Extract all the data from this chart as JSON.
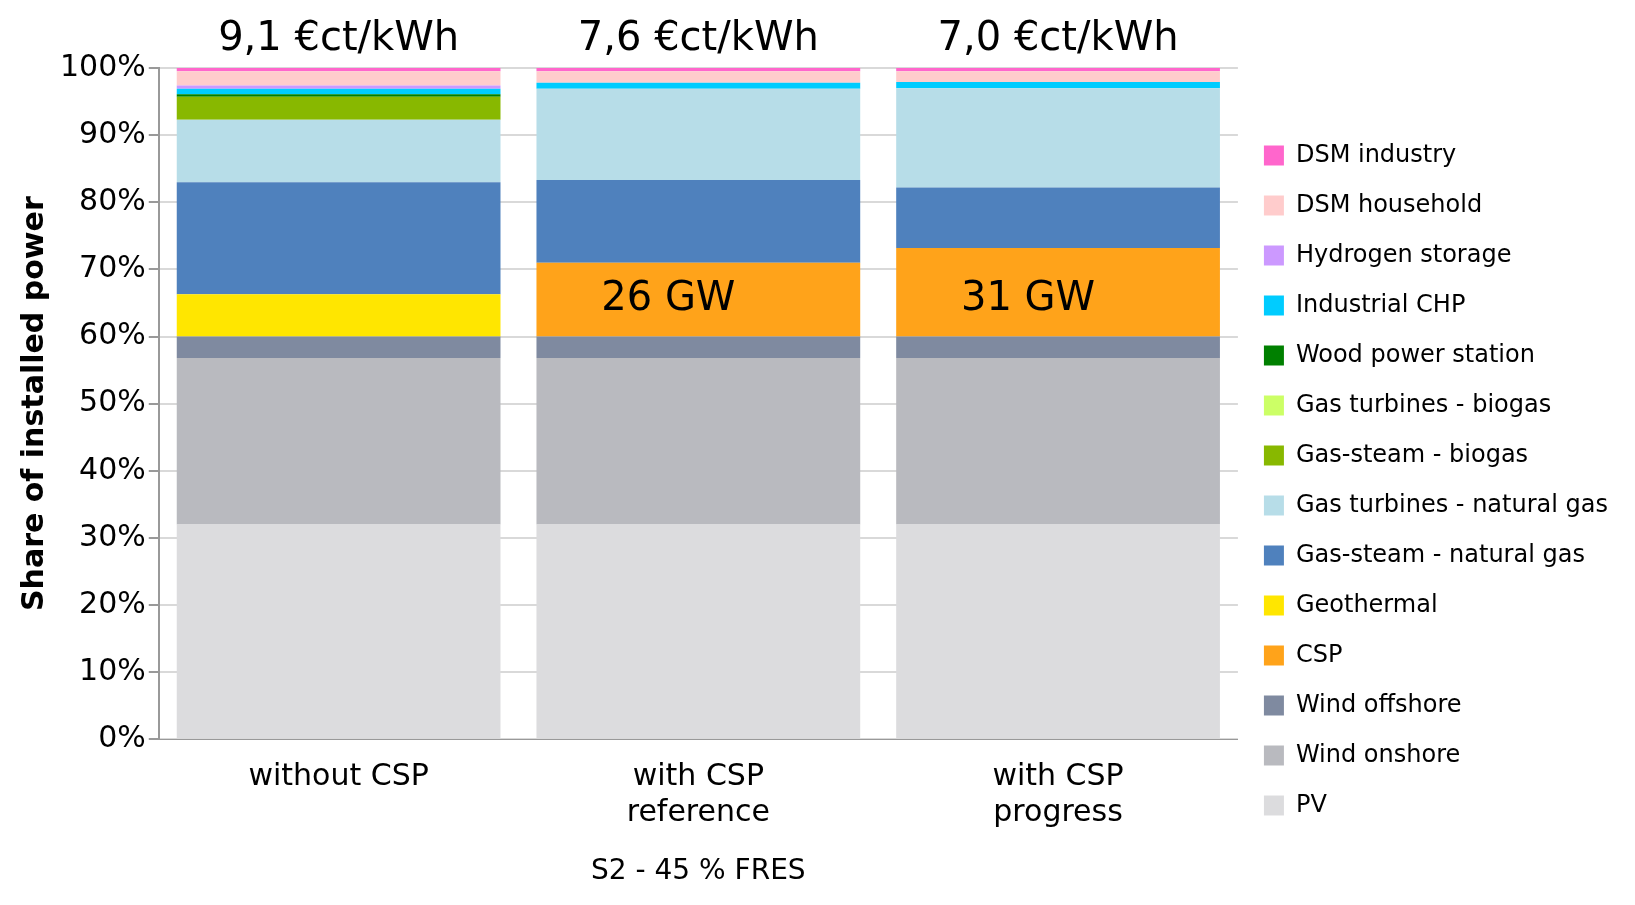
{
  "chart_data": {
    "type": "bar",
    "stacked": true,
    "ylabel": "Share of installed power",
    "xlabel": "S2 - 45 % FRES",
    "categories": [
      "without CSP",
      "with CSP reference",
      "with CSP progress"
    ],
    "series": [
      {
        "name": "PV",
        "color": "#dcdcde",
        "values": [
          32,
          32,
          32
        ]
      },
      {
        "name": "Wind onshore",
        "color": "#b9babf",
        "values": [
          24.8,
          24.8,
          24.8
        ]
      },
      {
        "name": "Wind offshore",
        "color": "#7f8aa0",
        "values": [
          3.2,
          3.2,
          3.2
        ]
      },
      {
        "name": "CSP",
        "color": "#ffa31a",
        "values": [
          0,
          11,
          13.2
        ]
      },
      {
        "name": "Geothermal",
        "color": "#ffe600",
        "values": [
          6.3,
          0,
          0
        ]
      },
      {
        "name": "Gas-steam - natural gas",
        "color": "#4f81bd",
        "values": [
          16.7,
          12.3,
          9
        ]
      },
      {
        "name": "Gas turbines - natural gas",
        "color": "#b7dde8",
        "values": [
          9.3,
          13.6,
          14.8
        ]
      },
      {
        "name": "Gas-steam - biogas",
        "color": "#88b800",
        "values": [
          3.4,
          0,
          0
        ]
      },
      {
        "name": "Gas turbines - biogas",
        "color": "#ccff66",
        "values": [
          0,
          0,
          0
        ]
      },
      {
        "name": "Wood power station",
        "color": "#008000",
        "values": [
          0.4,
          0,
          0
        ]
      },
      {
        "name": "Industrial CHP",
        "color": "#00ccff",
        "values": [
          0.8,
          0.9,
          0.9
        ]
      },
      {
        "name": "Hydrogen storage",
        "color": "#cc99ff",
        "values": [
          0.5,
          0,
          0
        ]
      },
      {
        "name": "DSM household",
        "color": "#ffcccc",
        "values": [
          2.1,
          1.7,
          1.6
        ]
      },
      {
        "name": "DSM industry",
        "color": "#ff66cc",
        "values": [
          0.5,
          0.5,
          0.5
        ]
      }
    ],
    "ylim": [
      0,
      100
    ],
    "yticks": [
      {
        "value": 0,
        "label": "0%"
      },
      {
        "value": 10,
        "label": "10%"
      },
      {
        "value": 20,
        "label": "20%"
      },
      {
        "value": 30,
        "label": "30%"
      },
      {
        "value": 40,
        "label": "40%"
      },
      {
        "value": 50,
        "label": "50%"
      },
      {
        "value": 60,
        "label": "60%"
      },
      {
        "value": 70,
        "label": "70%"
      },
      {
        "value": 80,
        "label": "80%"
      },
      {
        "value": 90,
        "label": "90%"
      },
      {
        "value": 100,
        "label": "100%"
      }
    ],
    "grid": "y",
    "legend": "right",
    "annotations": [
      {
        "text": "9,1 €ct/kWh",
        "x": "without CSP",
        "y": 100
      },
      {
        "text": "7,6 €ct/kWh",
        "x": "with CSP reference",
        "y": 100
      },
      {
        "text": "7,0 €ct/kWh",
        "x": "with CSP progress",
        "y": 100
      },
      "26 GW",
      "31 GW"
    ]
  }
}
